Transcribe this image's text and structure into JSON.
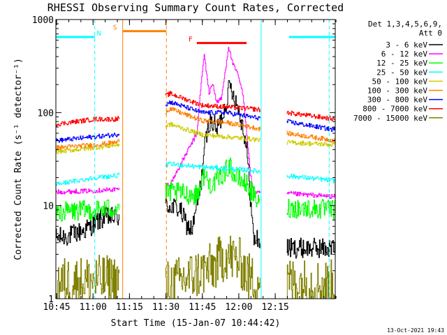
{
  "chart_data": {
    "type": "line",
    "title": "RHESSI Observing Summary Count Rates, Corrected",
    "xlabel": "Start Time (15-Jan-07 10:44:42)",
    "ylabel": "Corrected Count Rate (s⁻¹ detector⁻¹)",
    "x_unit": "minutes after 10:44:42",
    "xlim": [
      0,
      115
    ],
    "ylim": [
      1,
      1000
    ],
    "yscale": "log",
    "x_ticks": [
      "10:45",
      "11:00",
      "11:15",
      "11:30",
      "11:45",
      "12:00",
      "12:15"
    ],
    "y_ticks": [
      "1",
      "10",
      "100",
      "1000"
    ],
    "legend_header": [
      "Det 1,3,4,5,6,9,",
      "Att 0"
    ],
    "legend_position": "right",
    "footer_date": "13-Oct-2021 19:43",
    "data_gaps": [
      [
        26,
        45
      ],
      [
        84,
        95
      ]
    ],
    "intervals": [
      {
        "label": "N",
        "color": "#00ffff",
        "segments": [
          [
            0,
            16
          ],
          [
            96,
            115
          ]
        ],
        "level": 650,
        "boundaries": [
          [
            0,
            "solid"
          ],
          [
            16,
            "dashed"
          ],
          [
            84.5,
            "solid"
          ],
          [
            112.5,
            "dashed"
          ]
        ]
      },
      {
        "label": "S",
        "color": "#ff8000",
        "segments": [
          [
            27.5,
            45.5
          ]
        ],
        "level": 750,
        "boundaries": [
          [
            27.5,
            "solid"
          ],
          [
            45.5,
            "dashed"
          ]
        ]
      },
      {
        "label": "F",
        "color": "#ff0000",
        "segments": [
          [
            58,
            78.5
          ]
        ],
        "level": 560,
        "boundaries": []
      }
    ],
    "series": [
      {
        "name": "3 - 6 keV",
        "color": "#000000",
        "x": [
          0,
          6,
          12,
          16,
          20,
          25,
          47,
          51,
          54,
          56,
          58,
          59.5,
          61,
          63,
          65,
          66,
          68,
          70,
          71.5,
          73,
          75,
          77,
          78.5,
          80,
          81,
          81.5,
          82.5,
          84,
          88,
          95,
          115
        ],
        "values": [
          4.5,
          4.8,
          5.5,
          6.5,
          7.5,
          7.5,
          10,
          9,
          6,
          5.5,
          10,
          16,
          40,
          80,
          75,
          65,
          85,
          130,
          200,
          160,
          110,
          70,
          40,
          12,
          5.5,
          4.2,
          4.5,
          4,
          3.6,
          3.5,
          3.5
        ]
      },
      {
        "name": "6 - 12 keV",
        "color": "#ff00ff",
        "x": [
          0,
          16,
          25,
          47,
          58,
          59.5,
          61,
          63,
          64.5,
          66,
          68,
          69.5,
          71,
          71.5,
          73,
          75,
          77,
          78.5,
          80,
          81,
          82,
          84,
          95,
          115
        ],
        "values": [
          14,
          14.5,
          15,
          17,
          60,
          180,
          420,
          160,
          210,
          130,
          140,
          260,
          520,
          450,
          320,
          250,
          150,
          60,
          22,
          15,
          14,
          13.5,
          13.5,
          12.5
        ]
      },
      {
        "name": "12 - 25 keV",
        "color": "#00ff00",
        "x": [
          0,
          16,
          25,
          47,
          58,
          61,
          63,
          66,
          70,
          71.5,
          73,
          78.5,
          82,
          84,
          95,
          115
        ],
        "values": [
          8.5,
          9,
          9.5,
          14,
          13,
          22,
          17,
          18,
          24,
          28,
          21,
          17,
          12,
          10,
          9.5,
          9
        ]
      },
      {
        "name": "25 - 50 keV",
        "color": "#00ffff",
        "x": [
          0,
          16,
          25,
          47,
          60,
          70,
          80,
          95,
          115
        ],
        "values": [
          17,
          20,
          21,
          28,
          26,
          25,
          24,
          21,
          18.5
        ]
      },
      {
        "name": "50 - 100 keV",
        "color": "#cccc00",
        "x": [
          0,
          16,
          25,
          47,
          60,
          70,
          80,
          95,
          115
        ],
        "values": [
          38,
          42,
          45,
          75,
          58,
          55,
          52,
          48,
          45
        ]
      },
      {
        "name": "100 - 300 keV",
        "color": "#ff8000",
        "x": [
          0,
          16,
          25,
          47,
          60,
          70,
          80,
          95,
          115
        ],
        "values": [
          42,
          45,
          48,
          110,
          82,
          78,
          70,
          60,
          50
        ]
      },
      {
        "name": "300 - 800 keV",
        "color": "#0000ff",
        "x": [
          0,
          16,
          25,
          47,
          60,
          70,
          80,
          95,
          115
        ],
        "values": [
          50,
          55,
          58,
          130,
          100,
          100,
          90,
          80,
          65
        ]
      },
      {
        "name": "800 - 7000 keV",
        "color": "#ff0000",
        "x": [
          0,
          16,
          25,
          47,
          60,
          70,
          80,
          95,
          115
        ],
        "values": [
          75,
          85,
          85,
          160,
          120,
          115,
          110,
          100,
          85
        ]
      },
      {
        "name": "7000 - 15000 keV",
        "color": "#808000",
        "x": [
          0,
          25,
          47,
          65,
          70,
          76,
          80,
          95,
          115
        ],
        "values": [
          1.5,
          1.6,
          1.4,
          2.2,
          3.0,
          2.4,
          1.6,
          1.5,
          1.4
        ]
      }
    ]
  }
}
